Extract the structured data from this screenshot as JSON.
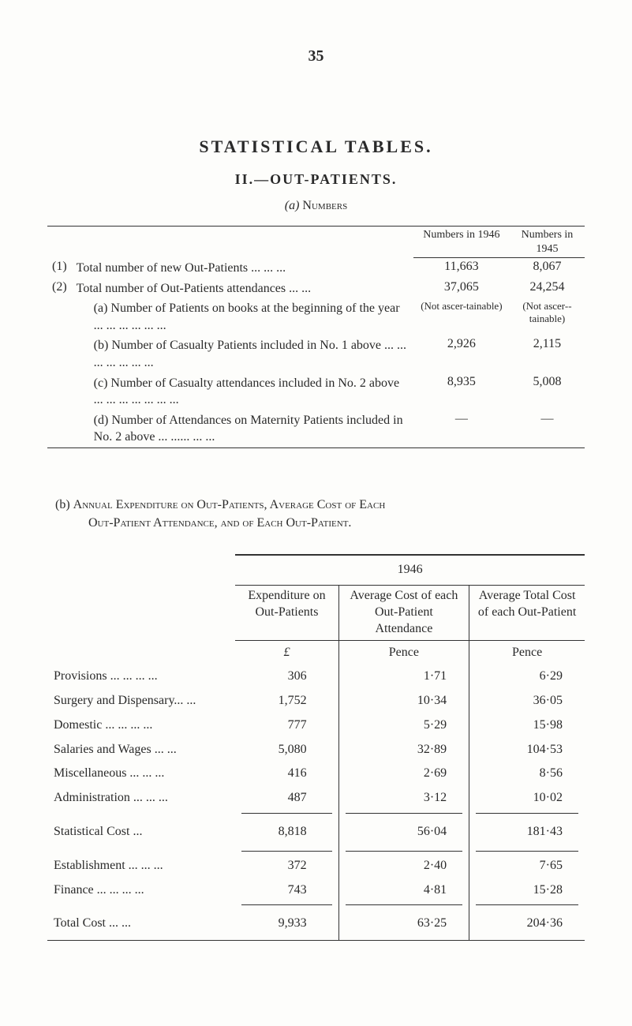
{
  "page_number": "35",
  "titles": {
    "main": "STATISTICAL TABLES.",
    "section": "II.—OUT-PATIENTS.",
    "sub_label": "(a)",
    "sub_text": "Numbers"
  },
  "table1": {
    "head_col1": "Numbers in 1946",
    "head_col2": "Numbers in 1945",
    "rows": [
      {
        "index": "(1)",
        "text": "Total number of new Out-Patients   ...   ...   ...",
        "c1": "11,663",
        "c2": "8,067"
      },
      {
        "index": "(2)",
        "text": "Total number of Out-Patients attendances   ...   ...",
        "c1": "37,065",
        "c2": "24,254"
      },
      {
        "index": "",
        "text": "(a) Number of Patients on books at the beginning of the year   ...   ...   ...   ...   ...   ...",
        "c1": "(Not ascer-­tainable)",
        "c2": "(Not ascer-­tainable)",
        "small": true,
        "indent": 1
      },
      {
        "index": "",
        "text": "(b) Number of Casualty Patients included in No. 1 above ...   ...   ...   ...   ...   ...   ...",
        "c1": "2,926",
        "c2": "2,115",
        "indent": 1
      },
      {
        "index": "",
        "text": "(c) Number of Casualty attendances included in No. 2 above ...   ...   ...   ...   ...   ...   ...",
        "c1": "8,935",
        "c2": "5,008",
        "indent": 1
      },
      {
        "index": "",
        "text": "(d) Number of Attendances on Maternity Patients included in No. 2 above ...   ......   ...   ...",
        "c1": "—",
        "c2": "—",
        "indent": 1
      }
    ]
  },
  "section_b": {
    "prefix": "(b)",
    "text_parts": [
      "Annual Expenditure on Out-Patients, Average Cost of Each",
      "Out-Patient Attendance, and of Each Out-Patient."
    ]
  },
  "table2": {
    "year": "1946",
    "col_labels": {
      "exp": "Expenditure on Out-Patients",
      "avg_attend": "Average Cost of each Out-Patient Attendance",
      "avg_patient": "Average Total Cost of each Out-Patient"
    },
    "unit_row": {
      "c1": "£",
      "c2": "Pence",
      "c3": "Pence"
    },
    "rows": [
      {
        "label": "Provisions ...   ...   ...   ...",
        "c1": "306",
        "c2": "1·71",
        "c3": "6·29"
      },
      {
        "label": "Surgery and Dispensary...   ...",
        "c1": "1,752",
        "c2": "10·34",
        "c3": "36·05"
      },
      {
        "label": "Domestic ...   ...   ...   ...",
        "c1": "777",
        "c2": "5·29",
        "c3": "15·98"
      },
      {
        "label": "Salaries and Wages   ...   ...",
        "c1": "5,080",
        "c2": "32·89",
        "c3": "104·53"
      },
      {
        "label": "Miscellaneous   ...   ...   ...",
        "c1": "416",
        "c2": "2·69",
        "c3": "8·56"
      },
      {
        "label": "Administration   ...   ...   ...",
        "c1": "487",
        "c2": "3·12",
        "c3": "10·02"
      }
    ],
    "stat_cost": {
      "label": "Statistical Cost   ...",
      "c1": "8,818",
      "c2": "56·04",
      "c3": "181·43"
    },
    "rows2": [
      {
        "label": "Establishment   ...   ...   ...",
        "c1": "372",
        "c2": "2·40",
        "c3": "7·65"
      },
      {
        "label": "Finance   ...   ...   ...   ...",
        "c1": "743",
        "c2": "4·81",
        "c3": "15·28"
      }
    ],
    "total": {
      "label": "Total Cost   ...   ...",
      "c1": "9,933",
      "c2": "63·25",
      "c3": "204·36"
    }
  }
}
